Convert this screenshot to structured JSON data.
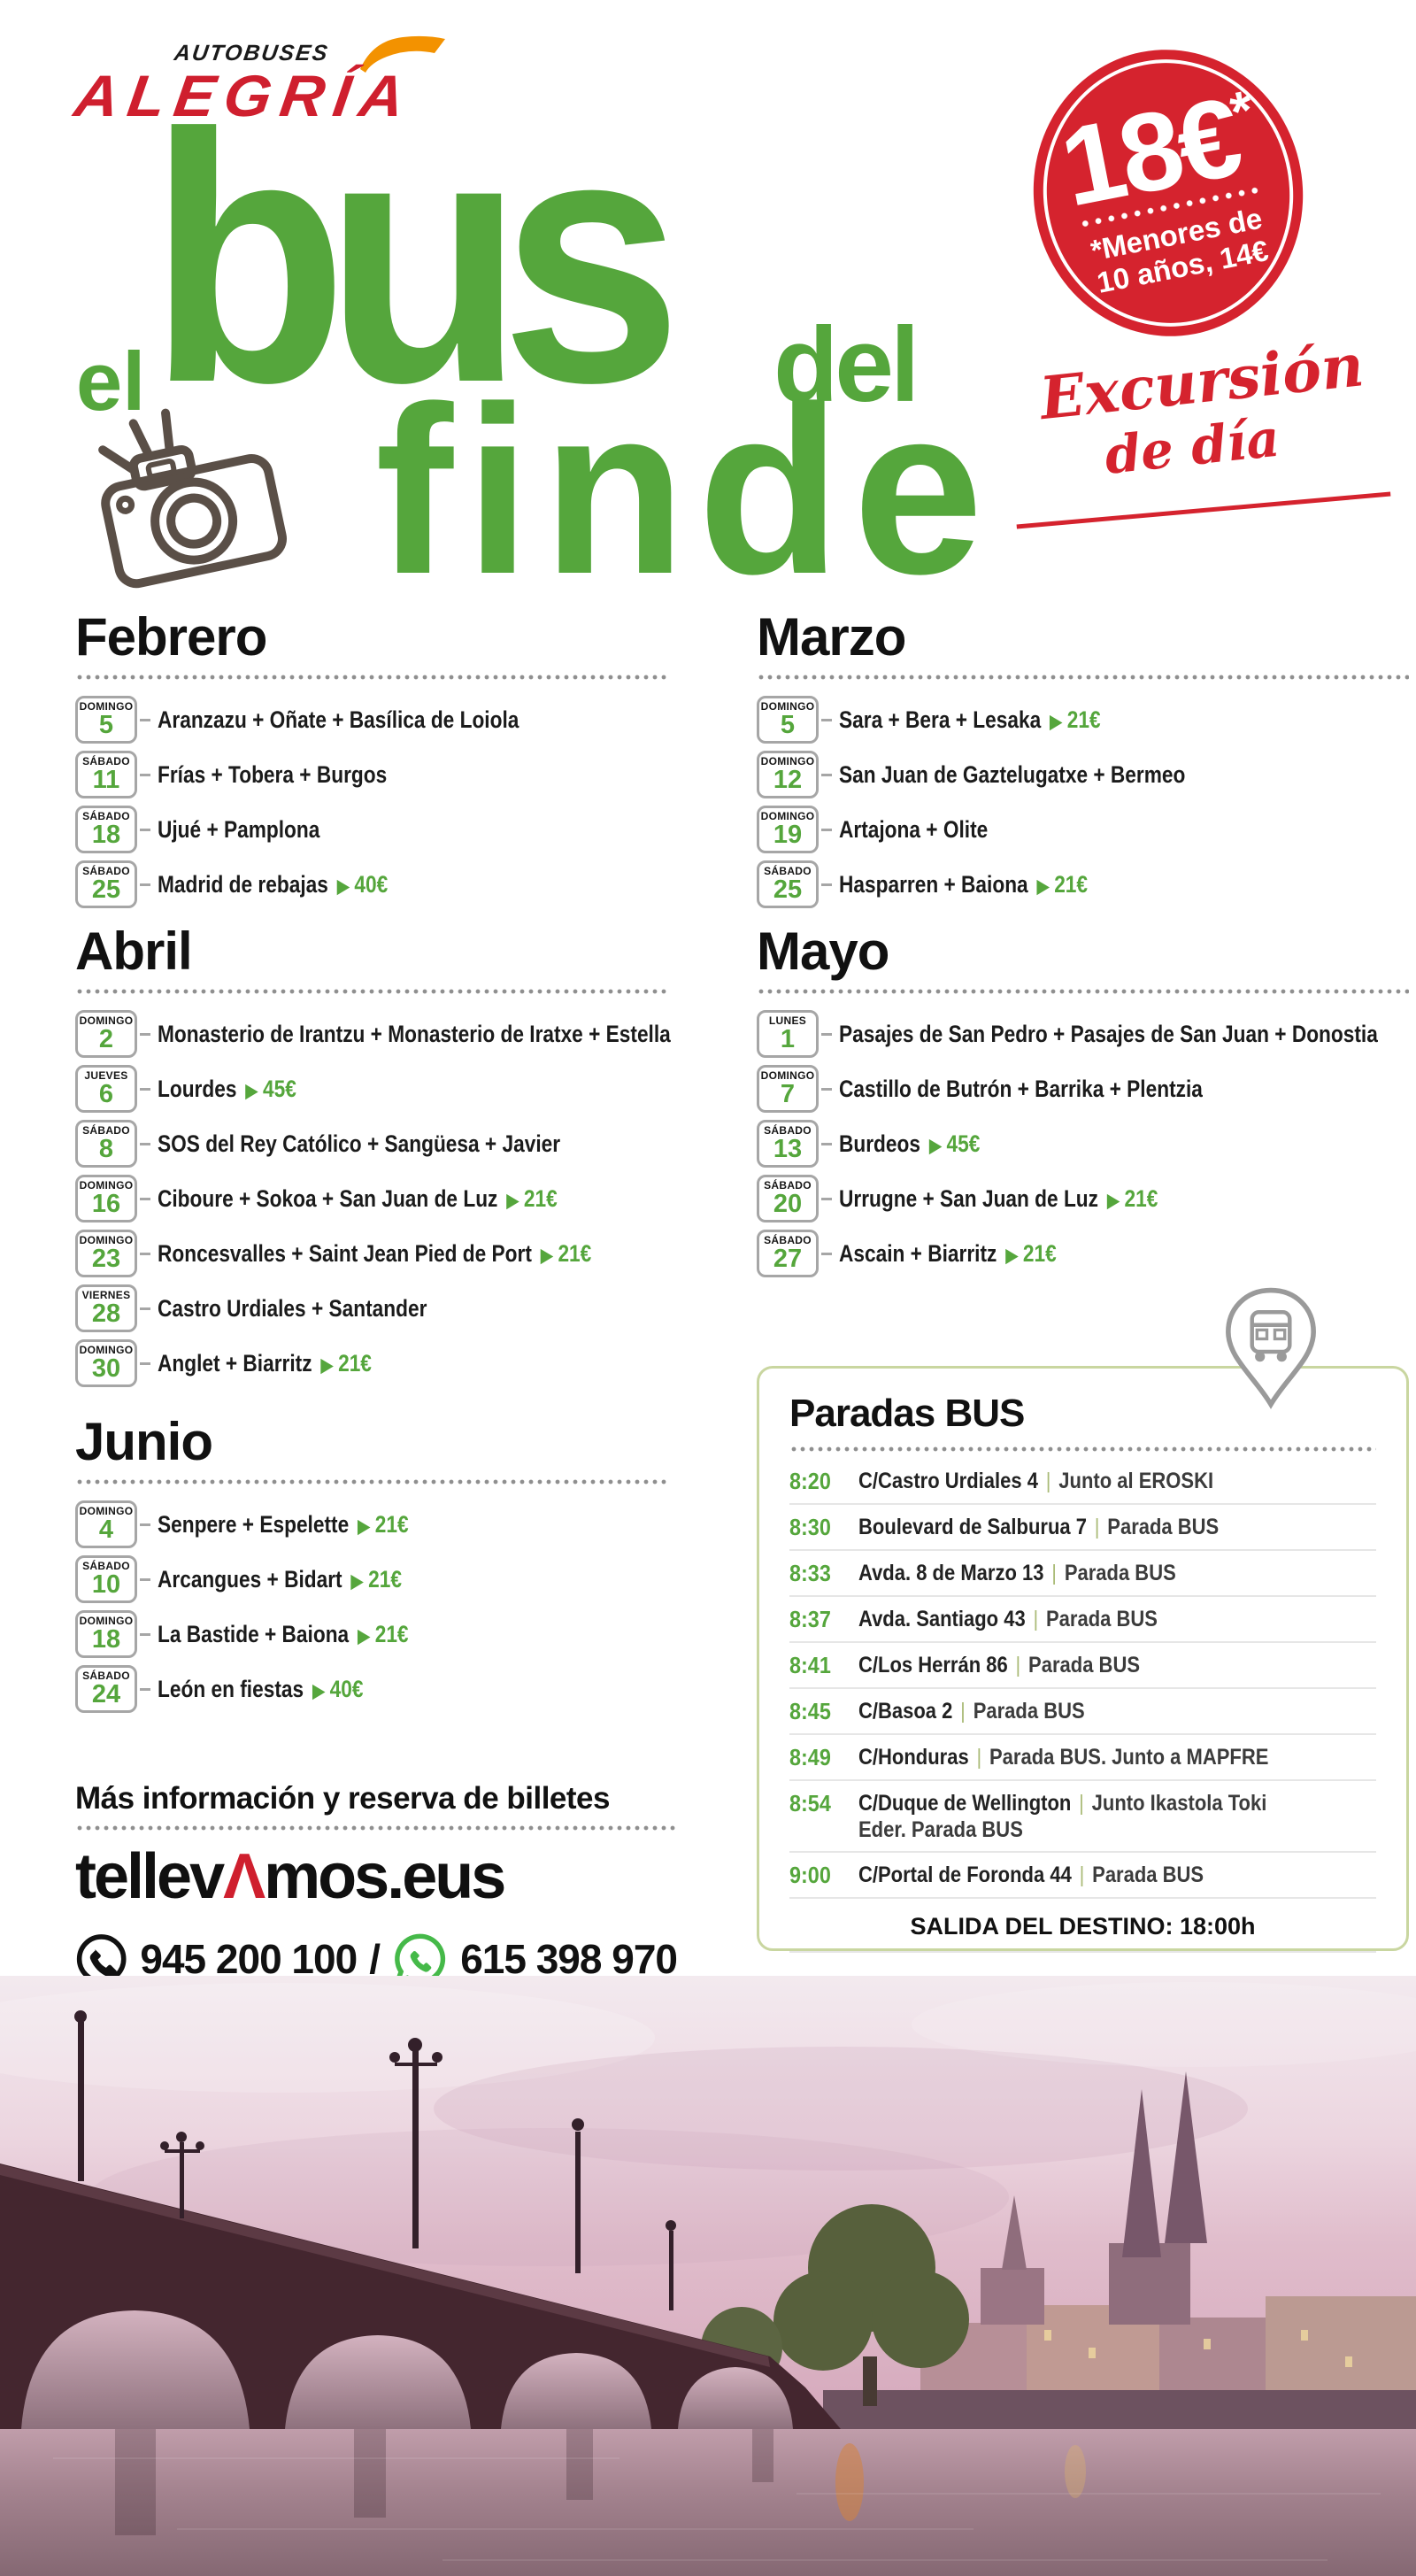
{
  "logo": {
    "autobuses": "AUTOBUSES",
    "alegria": "ALEGRÍA"
  },
  "title": {
    "el": "el",
    "bus": "bus",
    "del": "del",
    "finde": "finde"
  },
  "badge": {
    "price": "18€",
    "star": "*",
    "note1": "*Menores de",
    "note2": "10 años, 14€"
  },
  "tagline": {
    "line1": "Excursión",
    "line2": "de día"
  },
  "icons": {
    "price_arrow": "▶",
    "separator": "|"
  },
  "colors": {
    "green": "#55a63c",
    "red": "#d5232e",
    "orange": "#f39200",
    "camera_brown": "#5a4f47",
    "panel_border": "#c9d6a0"
  },
  "months": [
    {
      "name": "Febrero",
      "items": [
        {
          "day": "DOMINGO",
          "num": "5",
          "text": "Aranzazu + Oñate + Basílica de Loiola",
          "price": ""
        },
        {
          "day": "SÁBADO",
          "num": "11",
          "text": "Frías + Tobera + Burgos",
          "price": ""
        },
        {
          "day": "SÁBADO",
          "num": "18",
          "text": "Ujué + Pamplona",
          "price": ""
        },
        {
          "day": "SÁBADO",
          "num": "25",
          "text": "Madrid de rebajas",
          "price": "40€"
        }
      ]
    },
    {
      "name": "Marzo",
      "items": [
        {
          "day": "DOMINGO",
          "num": "5",
          "text": "Sara + Bera + Lesaka",
          "price": "21€"
        },
        {
          "day": "DOMINGO",
          "num": "12",
          "text": "San Juan de Gaztelugatxe + Bermeo",
          "price": ""
        },
        {
          "day": "DOMINGO",
          "num": "19",
          "text": "Artajona + Olite",
          "price": ""
        },
        {
          "day": "SÁBADO",
          "num": "25",
          "text": "Hasparren + Baiona",
          "price": "21€"
        }
      ]
    },
    {
      "name": "Abril",
      "items": [
        {
          "day": "DOMINGO",
          "num": "2",
          "text": "Monasterio de Irantzu + Monasterio de Iratxe + Estella",
          "price": ""
        },
        {
          "day": "JUEVES",
          "num": "6",
          "text": "Lourdes",
          "price": "45€"
        },
        {
          "day": "SÁBADO",
          "num": "8",
          "text": "SOS del Rey Católico + Sangüesa + Javier",
          "price": ""
        },
        {
          "day": "DOMINGO",
          "num": "16",
          "text": "Ciboure + Sokoa + San Juan de Luz",
          "price": "21€"
        },
        {
          "day": "DOMINGO",
          "num": "23",
          "text": "Roncesvalles + Saint Jean Pied de Port",
          "price": "21€"
        },
        {
          "day": "VIERNES",
          "num": "28",
          "text": "Castro Urdiales + Santander",
          "price": ""
        },
        {
          "day": "DOMINGO",
          "num": "30",
          "text": "Anglet + Biarritz",
          "price": "21€"
        }
      ]
    },
    {
      "name": "Mayo",
      "items": [
        {
          "day": "LUNES",
          "num": "1",
          "text": "Pasajes de San Pedro + Pasajes de San Juan + Donostia",
          "price": ""
        },
        {
          "day": "DOMINGO",
          "num": "7",
          "text": "Castillo de Butrón + Barrika + Plentzia",
          "price": ""
        },
        {
          "day": "SÁBADO",
          "num": "13",
          "text": "Burdeos",
          "price": "45€"
        },
        {
          "day": "SÁBADO",
          "num": "20",
          "text": "Urrugne + San Juan de Luz",
          "price": "21€"
        },
        {
          "day": "SÁBADO",
          "num": "27",
          "text": "Ascain + Biarritz",
          "price": "21€"
        }
      ]
    },
    {
      "name": "Junio",
      "items": [
        {
          "day": "DOMINGO",
          "num": "4",
          "text": "Senpere + Espelette",
          "price": "21€"
        },
        {
          "day": "SÁBADO",
          "num": "10",
          "text": "Arcangues + Bidart",
          "price": "21€"
        },
        {
          "day": "DOMINGO",
          "num": "18",
          "text": "La Bastide + Baiona",
          "price": "21€"
        },
        {
          "day": "SÁBADO",
          "num": "24",
          "text": "León en fiestas",
          "price": "40€"
        }
      ]
    }
  ],
  "paradas": {
    "title": "Paradas BUS",
    "stops": [
      {
        "time": "8:20",
        "place": "C/Castro Urdiales 4",
        "detail": "Junto al EROSKI"
      },
      {
        "time": "8:30",
        "place": "Boulevard de Salburua 7",
        "detail": "Parada BUS"
      },
      {
        "time": "8:33",
        "place": "Avda. 8 de Marzo 13",
        "detail": "Parada BUS"
      },
      {
        "time": "8:37",
        "place": "Avda. Santiago 43",
        "detail": "Parada BUS"
      },
      {
        "time": "8:41",
        "place": "C/Los Herrán 86",
        "detail": "Parada BUS"
      },
      {
        "time": "8:45",
        "place": "C/Basoa 2",
        "detail": "Parada BUS"
      },
      {
        "time": "8:49",
        "place": "C/Honduras",
        "detail": "Parada BUS. Junto a MAPFRE"
      },
      {
        "time": "8:54",
        "place": "C/Duque de Wellington",
        "detail": "Junto Ikastola Toki Eder. Parada BUS"
      },
      {
        "time": "9:00",
        "place": "C/Portal de Foronda 44",
        "detail": "Parada BUS"
      }
    ],
    "footer": "SALIDA DEL DESTINO: 18:00h"
  },
  "info": {
    "heading": "Más información y reserva de billetes",
    "site_pre": "tellev",
    "site_mark": "Λ",
    "site_post": "mos.eus",
    "phone1": "945 200 100",
    "sep": "/",
    "phone2": "615 398 970"
  }
}
